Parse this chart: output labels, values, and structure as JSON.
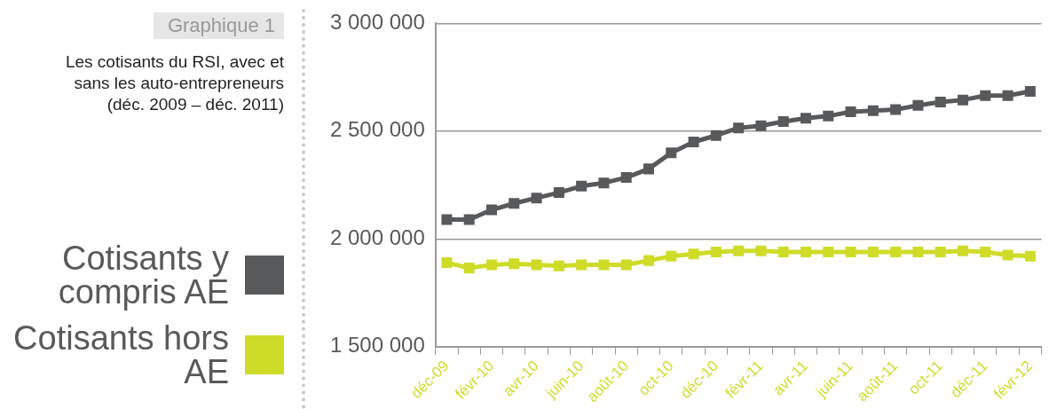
{
  "chart_data": {
    "type": "line",
    "title": "Graphique 1",
    "subtitle": "Les cotisants du RSI, avec et sans les auto-entrepreneurs (déc. 2009 – déc. 2011)",
    "categories": [
      "déc-09",
      null,
      "févr-10",
      null,
      "avr-10",
      null,
      "juin-10",
      null,
      "août-10",
      null,
      "oct-10",
      null,
      "déc-10",
      null,
      "févr-11",
      null,
      "avr-11",
      null,
      "juin-11",
      null,
      "août-11",
      null,
      "oct-11",
      null,
      "déc-11",
      null,
      "févr-12"
    ],
    "series": [
      {
        "name": "Cotisants y compris AE",
        "color": "#58595b",
        "values": [
          2090000,
          2090000,
          2135000,
          2165000,
          2190000,
          2215000,
          2245000,
          2260000,
          2285000,
          2325000,
          2400000,
          2450000,
          2480000,
          2515000,
          2525000,
          2545000,
          2560000,
          2570000,
          2590000,
          2595000,
          2600000,
          2620000,
          2635000,
          2645000,
          2665000,
          2665000,
          2685000
        ]
      },
      {
        "name": "Cotisants hors AE",
        "color": "#cedc28",
        "values": [
          1890000,
          1865000,
          1880000,
          1885000,
          1880000,
          1875000,
          1880000,
          1880000,
          1880000,
          1900000,
          1920000,
          1930000,
          1940000,
          1945000,
          1945000,
          1940000,
          1940000,
          1940000,
          1940000,
          1940000,
          1940000,
          1940000,
          1940000,
          1945000,
          1940000,
          1925000,
          1920000
        ]
      }
    ],
    "ylim": [
      1500000,
      3000000
    ],
    "yticks": [
      1500000,
      2000000,
      2500000,
      3000000
    ],
    "grid": "y",
    "legend": "left",
    "marker": "square",
    "line_style": "solid"
  }
}
